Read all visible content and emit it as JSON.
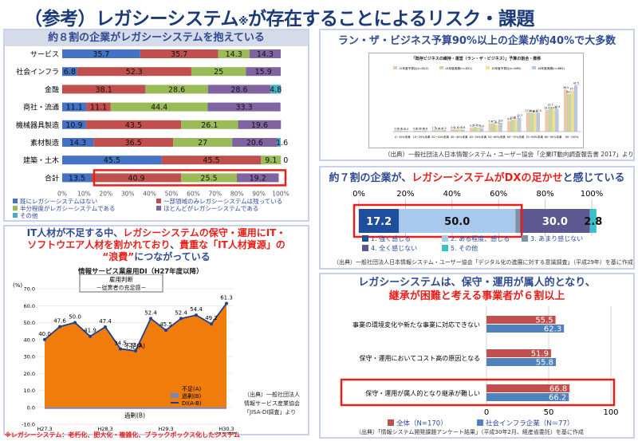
{
  "title": {
    "main": "（参考）レガシーシステム",
    "mark": "※",
    "rest": "が存在することによるリスク・課題"
  },
  "panel1": {
    "heading": "約８割の企業がレガシーシステムを抱えている",
    "chart_data": {
      "type": "bar",
      "orientation": "horizontal-stacked",
      "categories": [
        "サービス",
        "社会インフラ",
        "金融",
        "商社・流通",
        "機械器具製造",
        "素材製造",
        "建築・土木",
        "合計"
      ],
      "series": [
        {
          "name": "既にレガシーシステムはない",
          "color": "#4472c4",
          "values": [
            35.7,
            6.8,
            0,
            11.1,
            10.9,
            14.3,
            45.5,
            13.5
          ]
        },
        {
          "name": "一部領域のみレガシーシステムは残っている",
          "color": "#c0504d",
          "values": [
            35.7,
            52.3,
            38.1,
            11.1,
            43.5,
            36.5,
            45.5,
            40.9
          ]
        },
        {
          "name": "半分程度がレガシーシステムである",
          "color": "#9bbb59",
          "values": [
            14.3,
            25,
            28.6,
            44.4,
            26.1,
            27,
            9.1,
            25.5
          ]
        },
        {
          "name": "ほとんどがレガシーシステムである",
          "color": "#8064a2",
          "values": [
            14.3,
            15.9,
            28.6,
            33.3,
            19.6,
            20.6,
            0,
            19.2
          ]
        },
        {
          "name": "その他",
          "color": "#4bacc6",
          "values": [
            0,
            0,
            4.8,
            0,
            0,
            1.6,
            0,
            0
          ]
        }
      ],
      "labels": [
        [
          "35.7",
          "35.7",
          "14.3",
          "14.3",
          ""
        ],
        [
          "6.8",
          "52.3",
          "25",
          "15.9",
          ""
        ],
        [
          "0",
          "38.1",
          "28.6",
          "28.6",
          "4.8"
        ],
        [
          "11.1",
          "11.1",
          "44.4",
          "33.3",
          ""
        ],
        [
          "10.9",
          "43.5",
          "26.1",
          "19.6",
          ""
        ],
        [
          "14.3",
          "36.5",
          "27",
          "20.6",
          "1.6"
        ],
        [
          "45.5",
          "45.5",
          "9.1",
          "0",
          ""
        ],
        [
          "13.5",
          "40.9",
          "25.5",
          "19.2",
          ""
        ]
      ],
      "xticks": [
        "0%",
        "10%",
        "20%",
        "30%",
        "40%",
        "50%",
        "60%",
        "70%",
        "80%",
        "90%",
        "100%"
      ],
      "xlim": [
        0,
        100
      ],
      "highlight_category": "合計"
    }
  },
  "panel2": {
    "heading": "ラン・ザ・ビジネス予算90%以上の企業が約40%で大多数",
    "inner_title": "「既存ビジネスの維持・運営（ラン・ザ・ビジネス）」予算の割合・推移",
    "legend": [
      "12年度予算比(n=822)",
      "14年度実績(n=831)",
      "15年度予算比(n=880)",
      "16年度実績(n=885)"
    ],
    "chart_data": {
      "type": "bar",
      "categories": [
        "0~10%未満",
        "10~20%未満",
        "20~30%未満",
        "30~40%未満",
        "40~50%未満",
        "50~60%未満",
        "60~70%未満",
        "70~80%未満",
        "80~90%未満",
        "90~100%"
      ],
      "series": [
        {
          "name": "12年度予算比(n=822)",
          "color": "#f4c7a5",
          "values": [
            0.9,
            0.8,
            1.5,
            2.0,
            3.2,
            7.4,
            9.5,
            17.4,
            19.8,
            38.5
          ]
        },
        {
          "name": "14年度実績(n=831)",
          "color": "#c6d9a2",
          "values": [
            0.9,
            0.6,
            0.9,
            1.5,
            4.2,
            7.5,
            10.8,
            16.8,
            22.7,
            34.6
          ]
        },
        {
          "name": "15年度予算比(n=880)",
          "color": "#f2e08d",
          "values": [
            0.5,
            0.8,
            0.8,
            2.0,
            3.6,
            6.1,
            11.1,
            16.6,
            19.9,
            37.6
          ]
        },
        {
          "name": "16年度実績(n=885)",
          "color": "#b7c9e2",
          "values": [
            0.5,
            0.8,
            1.2,
            1.8,
            3.0,
            8.0,
            12.7,
            17.4,
            20.9,
            42.5
          ]
        }
      ],
      "ylim": [
        0,
        50
      ]
    },
    "source": "（出典）一般社団法人日本情報システム・ユーザー協会「企業IT動向調査報告書 2017」より"
  },
  "panel3": {
    "heading_pre": "約７割の企業が、",
    "heading_red": "レガシーシステムがDXの足かせ",
    "heading_post": "と感じている",
    "chart_data": {
      "type": "bar",
      "orientation": "horizontal-stacked",
      "values": [
        17.2,
        50.0,
        2.0,
        30.0,
        2.8
      ],
      "labels": [
        "17.2",
        "50.0",
        "",
        "30.0",
        "2.8"
      ],
      "colors": [
        "#1f4e9c",
        "#a8c8ec",
        "#7f8fa6",
        "#5e5891",
        "#3ac0c8"
      ],
      "xticks": [
        "0%",
        "20%",
        "40%",
        "60%",
        "80%",
        "100%"
      ],
      "xlim": [
        0,
        100
      ]
    },
    "legend": [
      "1. 強く感じる",
      "2. ある程度、感じる",
      "3. あまり感じない",
      "4. 全く感じない",
      "5. その他"
    ],
    "source": "（出典）一般社団法人日本情報システム・ユーザー協会「デジタル化の進展に対する意識調査」（平成29年）を基に作成"
  },
  "panel4": {
    "heading_l1_black": "IT人材が不足する中、",
    "heading_l1_red": "レガシーシステムの保守・運用にIT・",
    "heading_l2_red": "ソフトウエア人材を割かれており",
    "heading_l2_black": "、",
    "heading_l2_red2": "貴重な「IT人材資源」の",
    "heading_l3_red": "“浪費”",
    "heading_l3_black": "につながっている",
    "chart_title": "情報サービス業雇用DI（H27年度以降）",
    "box_title": "雇用判断",
    "box_sub": "－従業者の充足感－",
    "unit": "(%)",
    "label_short": "不足(A)",
    "label_surplus": "過剰(B)",
    "yticks": [
      "70.0",
      "60.0",
      "50.0",
      "40.0",
      "30.0",
      "20.0",
      "10.0",
      "0.0",
      "-10.0"
    ],
    "xticks": [
      "H27.3",
      "H28.3",
      "H29.3",
      "H30.3"
    ],
    "x_note": "(調査時期)",
    "legend": [
      "不足(A)",
      "過剰(B)",
      "DI(A-B)"
    ],
    "chart_data": {
      "type": "area",
      "di_values": [
        40.0,
        47.6,
        50.0,
        41.9,
        47.4,
        34.5,
        33.3,
        52.4,
        45.5,
        52.4,
        54.4,
        49.2,
        61.3
      ],
      "di_labels": [
        "40.0",
        "47.6",
        "50.0",
        "41.9",
        "47.4",
        "34.5",
        "33.3",
        "52.4",
        "45.5",
        "52.4",
        "54.4",
        "49.2",
        "61.3"
      ],
      "ylim": [
        -10,
        70
      ]
    },
    "source": [
      "（出典）一般社団法人",
      "情報サービス産業協会",
      "「JISA-DI調査」より"
    ]
  },
  "panel5": {
    "heading_l1": "レガシーシステムは、保守・運用が属人的となり、",
    "heading_l2": "継承が困難と考える事業者が６割以上",
    "chart_data": {
      "type": "bar",
      "orientation": "horizontal",
      "categories": [
        "事業の環境変化や新たな事業に対応できない",
        "保守・運用においてコスト高の原因となる",
        "保守・運用が属人的となり継承が難しい"
      ],
      "series": [
        {
          "name": "全体（N=170）",
          "color": "#c0504d",
          "values": [
            55.5,
            51.9,
            66.8
          ]
        },
        {
          "name": "社会インフラ企業（N＝77）",
          "color": "#4f81bd",
          "values": [
            62.3,
            55.8,
            66.2
          ]
        }
      ],
      "xticks": [
        "0",
        "50",
        "100"
      ],
      "xlim": [
        0,
        100
      ]
    },
    "source": "（出典）「情報システム開発課題アンケート結果」（平成30年2月、経産省委託）を基に作成"
  },
  "footnote": "※レガシーシステム：老朽化、肥大化・複雑化、ブラックボックス化したシステム"
}
